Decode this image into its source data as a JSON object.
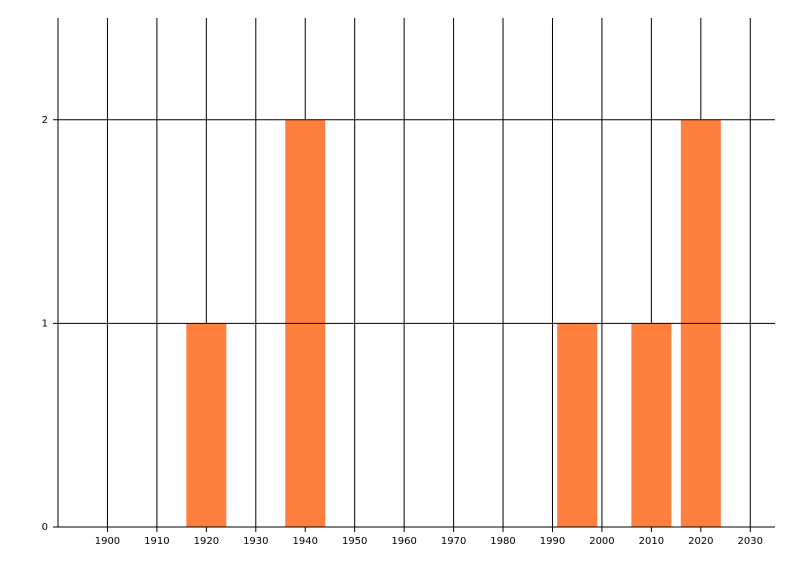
{
  "chart_data": {
    "type": "bar",
    "x": [
      1920,
      1940,
      1995,
      2010,
      2020
    ],
    "values": [
      1,
      2,
      1,
      1,
      2
    ],
    "color": "#ff7f3f",
    "xlim": [
      1890,
      2035
    ],
    "xticks": [
      1900,
      1910,
      1920,
      1930,
      1940,
      1950,
      1960,
      1970,
      1980,
      1990,
      2000,
      2010,
      2020,
      2030
    ],
    "ylim": [
      0,
      2.5
    ],
    "yticks": [
      0,
      1,
      2
    ],
    "grid": true
  }
}
